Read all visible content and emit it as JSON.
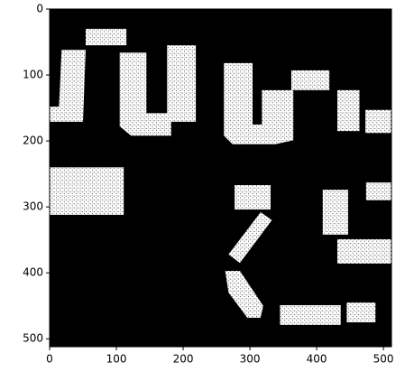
{
  "chart_data": {
    "type": "image",
    "xlim": [
      0,
      512
    ],
    "ylim": [
      512,
      0
    ],
    "xticks": [
      0,
      100,
      200,
      300,
      400,
      500
    ],
    "yticks": [
      0,
      100,
      200,
      300,
      400,
      500
    ]
  }
}
